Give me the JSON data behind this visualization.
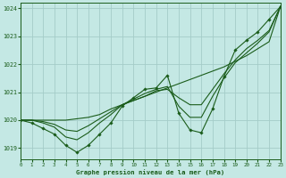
{
  "title": "Graphe pression niveau de la mer (hPa)",
  "bg_color": "#c4e8e4",
  "grid_color": "#a4ccc8",
  "line_color": "#1a5c1a",
  "xlim": [
    0,
    23
  ],
  "ylim": [
    1018.6,
    1024.2
  ],
  "yticks": [
    1019,
    1020,
    1021,
    1022,
    1023,
    1024
  ],
  "xticks": [
    0,
    1,
    2,
    3,
    4,
    5,
    6,
    7,
    8,
    9,
    10,
    11,
    12,
    13,
    14,
    15,
    16,
    17,
    18,
    19,
    20,
    21,
    22,
    23
  ],
  "series_marker": [
    1020.0,
    1019.9,
    1019.7,
    1019.5,
    1019.1,
    1018.85,
    1019.1,
    1019.5,
    1019.9,
    1020.5,
    1020.8,
    1021.1,
    1021.15,
    1021.6,
    1020.25,
    1019.65,
    1019.55,
    1020.4,
    1021.55,
    1022.5,
    1022.85,
    1023.15,
    1023.6,
    1024.05
  ],
  "series_straight": [
    1020.0,
    1020.0,
    1020.0,
    1020.0,
    1020.0,
    1020.05,
    1020.1,
    1020.2,
    1020.4,
    1020.55,
    1020.7,
    1020.85,
    1021.0,
    1021.15,
    1021.3,
    1021.45,
    1021.6,
    1021.75,
    1021.9,
    1022.1,
    1022.3,
    1022.55,
    1022.8,
    1024.05
  ],
  "series_mid1": [
    1020.0,
    1020.0,
    1019.9,
    1019.75,
    1019.4,
    1019.3,
    1019.55,
    1019.9,
    1020.2,
    1020.55,
    1020.75,
    1020.95,
    1021.1,
    1021.2,
    1020.5,
    1020.1,
    1020.1,
    1020.85,
    1021.5,
    1022.05,
    1022.4,
    1022.75,
    1023.15,
    1024.05
  ],
  "series_mid2": [
    1020.0,
    1020.0,
    1019.95,
    1019.85,
    1019.65,
    1019.6,
    1019.8,
    1020.05,
    1020.3,
    1020.55,
    1020.7,
    1020.85,
    1021.05,
    1021.1,
    1020.8,
    1020.55,
    1020.55,
    1021.1,
    1021.65,
    1022.15,
    1022.55,
    1022.85,
    1023.2,
    1024.05
  ]
}
